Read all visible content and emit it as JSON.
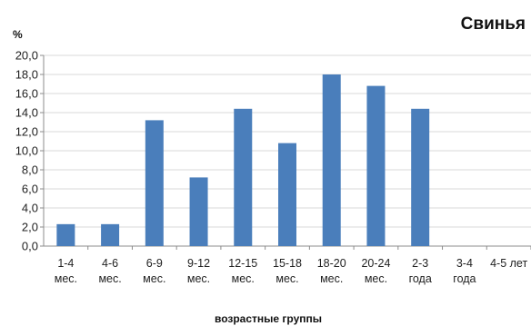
{
  "chart_data": {
    "type": "bar",
    "title": "Свинья",
    "ylabel": "%",
    "xlabel": "возрастные группы",
    "categories": [
      [
        "1-4",
        "мес."
      ],
      [
        "4-6",
        "мес."
      ],
      [
        "6-9",
        "мес."
      ],
      [
        "9-12",
        "мес."
      ],
      [
        "12-15",
        "мес."
      ],
      [
        "15-18",
        "мес."
      ],
      [
        "18-20",
        "мес."
      ],
      [
        "20-24",
        "мес."
      ],
      [
        "2-3",
        "года"
      ],
      [
        "3-4",
        "года"
      ],
      [
        "4-5 лет",
        ""
      ]
    ],
    "values": [
      2.3,
      2.3,
      13.2,
      7.2,
      14.4,
      10.8,
      18.0,
      16.8,
      14.4,
      0,
      0
    ],
    "ylim": [
      0,
      20
    ],
    "yticks": [
      "0,0",
      "2,0",
      "4,0",
      "6,0",
      "8,0",
      "10,0",
      "12,0",
      "14,0",
      "16,0",
      "18,0",
      "20,0"
    ],
    "grid": true,
    "bar_color": "#4a7ebb",
    "grid_color": "#d9d9d9",
    "axis_color": "#8c8c8c"
  }
}
